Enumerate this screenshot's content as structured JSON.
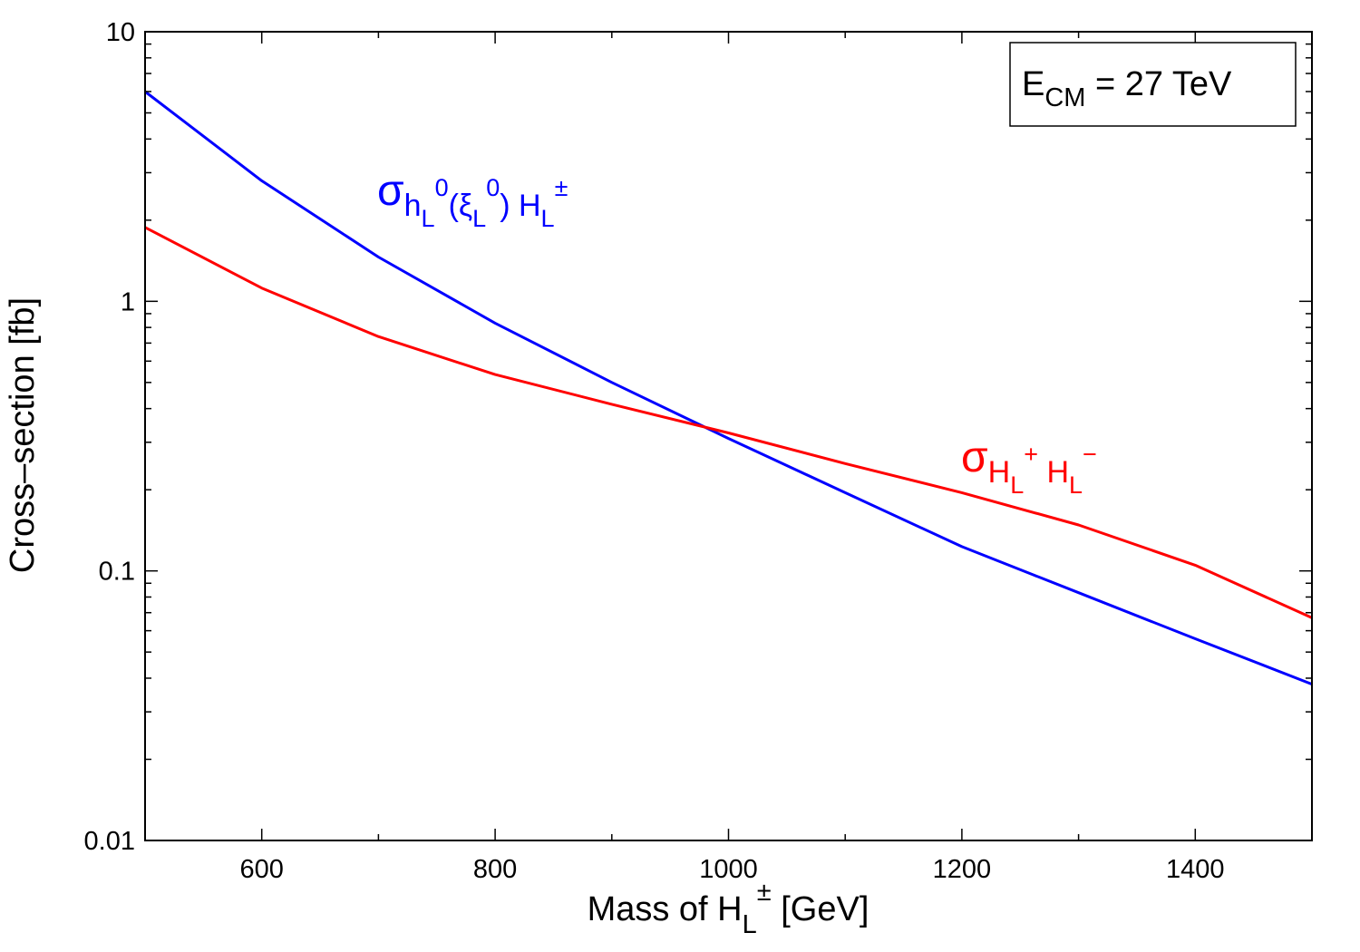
{
  "chart_data": {
    "type": "line",
    "xlabel": {
      "prefix": "Mass of H",
      "sub": "L",
      "sup": "±",
      "suffix": " [GeV]"
    },
    "ylabel": "Cross–section [fb]",
    "xlim": [
      500,
      1500
    ],
    "ylim": [
      0.01,
      10
    ],
    "yscale": "log",
    "grid": false,
    "x_ticks": [
      600,
      800,
      1000,
      1200,
      1400
    ],
    "x_tick_labels": [
      "600",
      "800",
      "1000",
      "1200",
      "1400"
    ],
    "y_ticks": [
      0.01,
      0.1,
      1,
      10
    ],
    "y_tick_labels": [
      "0.01",
      "0.1",
      "1",
      "10"
    ],
    "annotation": {
      "prefix": "E",
      "sub": "CM",
      "suffix": " = 27 TeV",
      "placement": "top-right",
      "boxed": true
    },
    "series": [
      {
        "label_parts": [
          {
            "t": "σ",
            "kind": "sym"
          },
          {
            "t": "h",
            "kind": "sub1"
          },
          {
            "t": "L",
            "kind": "sub2"
          },
          {
            "t": "0",
            "kind": "sup1"
          },
          {
            "t": "(ξ",
            "kind": "sub1"
          },
          {
            "t": "L",
            "kind": "sub2"
          },
          {
            "t": "0",
            "kind": "sup1"
          },
          {
            "t": ") H",
            "kind": "sub1"
          },
          {
            "t": "L",
            "kind": "sub2"
          },
          {
            "t": "±",
            "kind": "sup1"
          }
        ],
        "color": "#0000ff",
        "x": [
          500,
          600,
          700,
          800,
          900,
          1000,
          1100,
          1200,
          1300,
          1400,
          1500
        ],
        "y": [
          6.0,
          2.8,
          1.46,
          0.83,
          0.5,
          0.31,
          0.195,
          0.123,
          0.083,
          0.056,
          0.038
        ]
      },
      {
        "label_parts": [
          {
            "t": "σ",
            "kind": "sym"
          },
          {
            "t": "H",
            "kind": "sub1"
          },
          {
            "t": "L",
            "kind": "sub2"
          },
          {
            "t": "+",
            "kind": "sup1"
          },
          {
            "t": " H",
            "kind": "sub1"
          },
          {
            "t": "L",
            "kind": "sub2"
          },
          {
            "t": "−",
            "kind": "sup1"
          }
        ],
        "color": "#ff0000",
        "x": [
          500,
          600,
          700,
          800,
          900,
          1000,
          1100,
          1200,
          1300,
          1400,
          1500
        ],
        "y": [
          1.88,
          1.12,
          0.74,
          0.535,
          0.415,
          0.325,
          0.25,
          0.195,
          0.148,
          0.105,
          0.067
        ]
      }
    ]
  }
}
